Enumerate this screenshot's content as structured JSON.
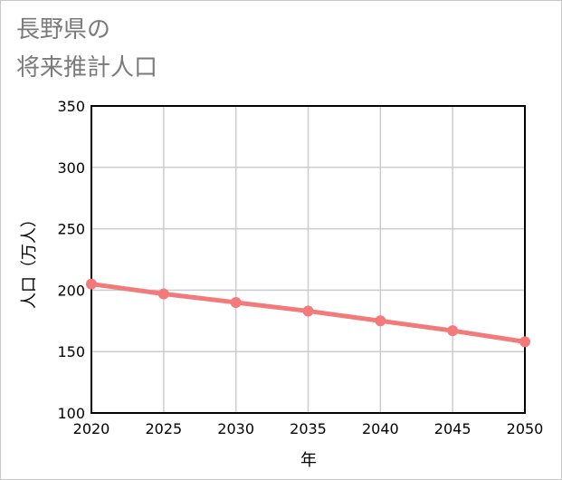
{
  "title_lines": [
    "長野県の",
    "将来推計人口"
  ],
  "chart_data": {
    "type": "line",
    "title": "長野県の将来推計人口",
    "xlabel": "年",
    "ylabel": "人口（万人）",
    "x": [
      2020,
      2025,
      2030,
      2035,
      2040,
      2045,
      2050
    ],
    "series": [
      {
        "name": "人口",
        "values": [
          205,
          197,
          190,
          183,
          175,
          167,
          158
        ]
      }
    ],
    "xlim": [
      2020,
      2050
    ],
    "ylim": [
      100,
      350
    ],
    "yticks": [
      100,
      150,
      200,
      250,
      300,
      350
    ],
    "xticks": [
      2020,
      2025,
      2030,
      2035,
      2040,
      2045,
      2050
    ],
    "grid": true,
    "line_color": "#f27a7a",
    "grid_color": "#cccccc"
  }
}
